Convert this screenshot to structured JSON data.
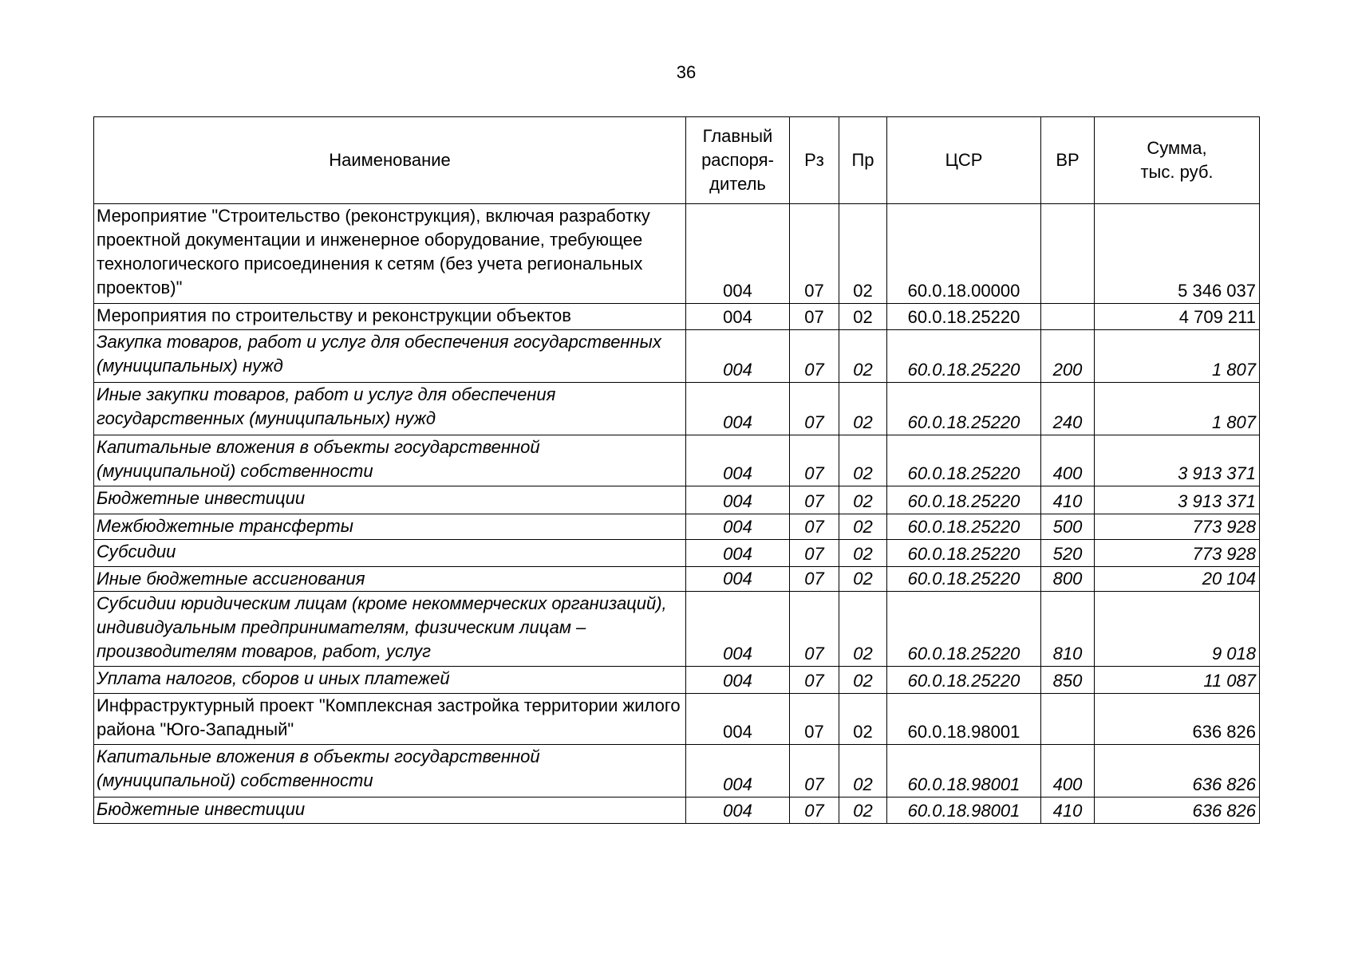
{
  "page_number": "36",
  "table": {
    "headers": [
      "Наименование",
      "Главный распоря-дитель",
      "Рз",
      "Пр",
      "ЦСР",
      "ВР",
      "Сумма, тыс. руб."
    ],
    "header_lines": {
      "gr": [
        "Главный",
        "распоря-",
        "дитель"
      ],
      "sum": [
        "Сумма,",
        "тыс. руб."
      ]
    },
    "rows": [
      {
        "name": "Мероприятие \"Строительство (реконструкция), включая разработку проектной документации и инженерное оборудование, требующее технологического присоединения к сетям (без учета региональных проектов)\"",
        "gr": "004",
        "rz": "07",
        "pr": "02",
        "csr": "60.0.18.00000",
        "vr": "",
        "sum": "5 346 037",
        "italic": false
      },
      {
        "name": "Мероприятия по строительству и реконструкции объектов",
        "gr": "004",
        "rz": "07",
        "pr": "02",
        "csr": "60.0.18.25220",
        "vr": "",
        "sum": "4 709 211",
        "italic": false
      },
      {
        "name": "Закупка товаров, работ и услуг для обеспечения государственных (муниципальных) нужд",
        "gr": "004",
        "rz": "07",
        "pr": "02",
        "csr": "60.0.18.25220",
        "vr": "200",
        "sum": "1 807",
        "italic": true
      },
      {
        "name": "Иные закупки товаров, работ и услуг для обеспечения государственных (муниципальных) нужд",
        "gr": "004",
        "rz": "07",
        "pr": "02",
        "csr": "60.0.18.25220",
        "vr": "240",
        "sum": "1 807",
        "italic": true
      },
      {
        "name": "Капитальные вложения в объекты государственной (муниципальной) собственности",
        "gr": "004",
        "rz": "07",
        "pr": "02",
        "csr": "60.0.18.25220",
        "vr": "400",
        "sum": "3 913 371",
        "italic": true
      },
      {
        "name": "Бюджетные инвестиции",
        "gr": "004",
        "rz": "07",
        "pr": "02",
        "csr": "60.0.18.25220",
        "vr": "410",
        "sum": "3 913 371",
        "italic": true
      },
      {
        "name": "Межбюджетные трансферты",
        "gr": "004",
        "rz": "07",
        "pr": "02",
        "csr": "60.0.18.25220",
        "vr": "500",
        "sum": "773 928",
        "italic": true
      },
      {
        "name": "Субсидии",
        "gr": "004",
        "rz": "07",
        "pr": "02",
        "csr": "60.0.18.25220",
        "vr": "520",
        "sum": "773 928",
        "italic": true
      },
      {
        "name": "Иные бюджетные ассигнования",
        "gr": "004",
        "rz": "07",
        "pr": "02",
        "csr": "60.0.18.25220",
        "vr": "800",
        "sum": "20 104",
        "italic": true
      },
      {
        "name": "Субсидии юридическим лицам (кроме некоммерческих организаций), индивидуальным предпринимателям, физическим лицам  – производителям товаров, работ, услуг",
        "gr": "004",
        "rz": "07",
        "pr": "02",
        "csr": "60.0.18.25220",
        "vr": "810",
        "sum": "9 018",
        "italic": true
      },
      {
        "name": "Уплата налогов, сборов и иных платежей",
        "gr": "004",
        "rz": "07",
        "pr": "02",
        "csr": "60.0.18.25220",
        "vr": "850",
        "sum": "11 087",
        "italic": true
      },
      {
        "name": "Инфраструктурный проект \"Комплексная застройка территории жилого района \"Юго-Западный\"",
        "gr": "004",
        "rz": "07",
        "pr": "02",
        "csr": "60.0.18.98001",
        "vr": "",
        "sum": "636 826",
        "italic": false
      },
      {
        "name": "Капитальные вложения в объекты государственной (муниципальной) собственности",
        "gr": "004",
        "rz": "07",
        "pr": "02",
        "csr": "60.0.18.98001",
        "vr": "400",
        "sum": "636 826",
        "italic": true
      },
      {
        "name": "Бюджетные инвестиции",
        "gr": "004",
        "rz": "07",
        "pr": "02",
        "csr": "60.0.18.98001",
        "vr": "410",
        "sum": "636 826",
        "italic": true
      }
    ]
  }
}
